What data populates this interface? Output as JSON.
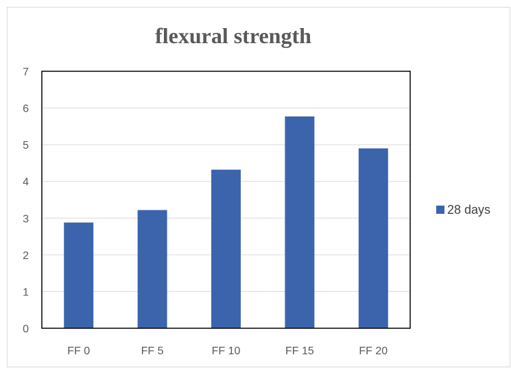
{
  "chart_data": {
    "type": "bar",
    "title": "flexural strength",
    "xlabel": "",
    "ylabel": "",
    "categories": [
      "FF 0",
      "FF 5",
      "FF 10",
      "FF 15",
      "FF 20"
    ],
    "series": [
      {
        "name": "28 days",
        "values": [
          2.88,
          3.22,
          4.32,
          5.77,
          4.9
        ]
      }
    ],
    "ylim": [
      0,
      7
    ],
    "yticks": [
      "0",
      "1",
      "2",
      "3",
      "4",
      "5",
      "6",
      "7"
    ],
    "grid": true,
    "legend_position": "right",
    "bar_color": "#3b64ad"
  }
}
